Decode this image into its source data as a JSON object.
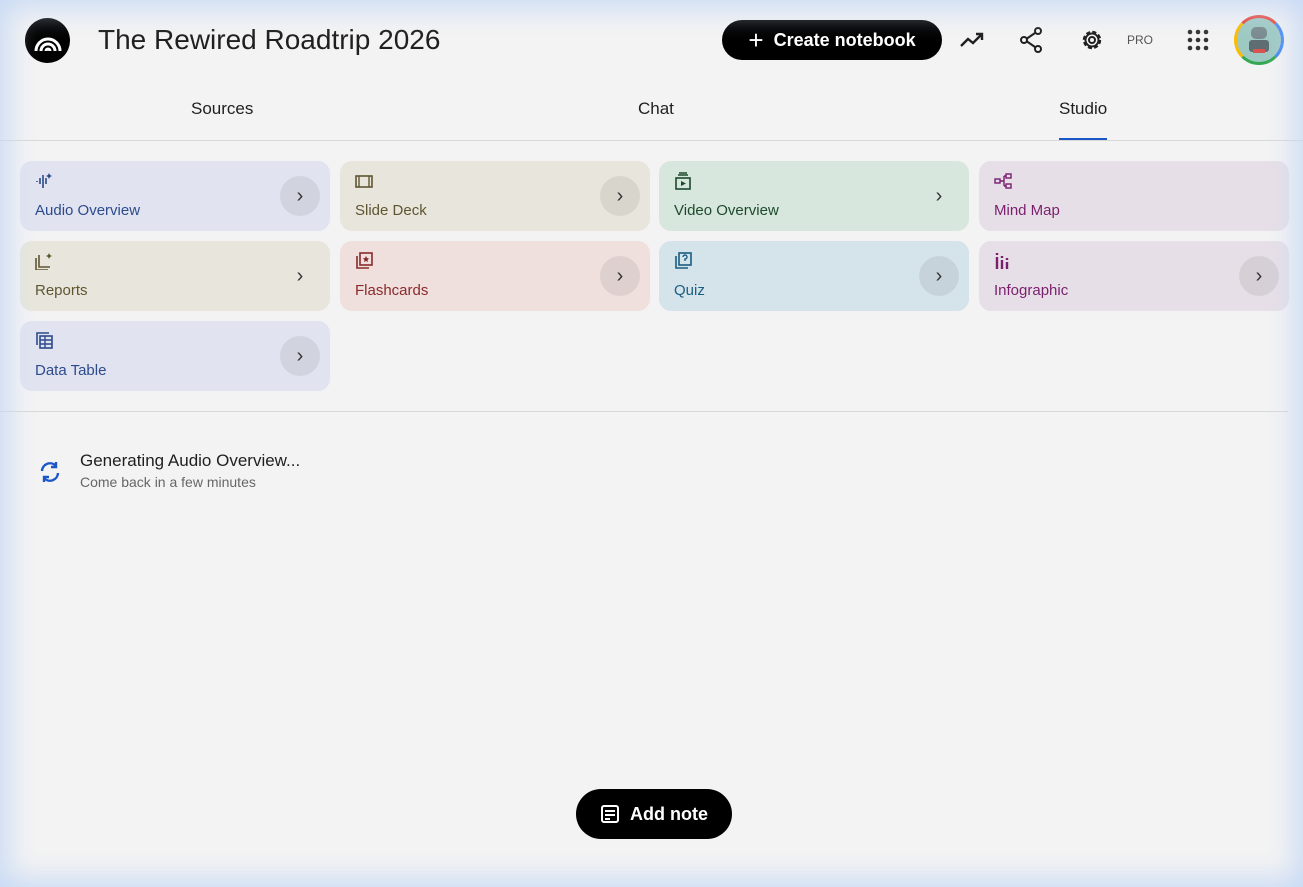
{
  "header": {
    "title": "The Rewired Roadtrip 2026",
    "create_label": "Create notebook",
    "pro_label": "PRO"
  },
  "tabs": [
    {
      "label": "Sources"
    },
    {
      "label": "Chat"
    },
    {
      "label": "Studio",
      "active": true
    }
  ],
  "cards": [
    {
      "label": "Audio Overview",
      "icon": "audio-waveform-icon",
      "bg": "#e1e4f0",
      "color": "#2c4a8c"
    },
    {
      "label": "Slide Deck",
      "icon": "slides-icon",
      "bg": "#e8e6dc",
      "color": "#5e5530"
    },
    {
      "label": "Video Overview",
      "icon": "video-icon",
      "bg": "#d8e7dd",
      "color": "#1d4a2c"
    },
    {
      "label": "Mind Map",
      "icon": "mind-map-icon",
      "bg": "#e7dfe7",
      "color": "#7a1f6e"
    },
    {
      "label": "Reports",
      "icon": "reports-icon",
      "bg": "#e8e6dc",
      "color": "#5e5530"
    },
    {
      "label": "Flashcards",
      "icon": "flashcards-icon",
      "bg": "#efe0de",
      "color": "#8a2a2a"
    },
    {
      "label": "Quiz",
      "icon": "quiz-icon",
      "bg": "#d5e4eb",
      "color": "#1a5e80"
    },
    {
      "label": "Infographic",
      "icon": "infographic-icon",
      "bg": "#e7dfe7",
      "color": "#7a1f6e"
    },
    {
      "label": "Data Table",
      "icon": "data-table-icon",
      "bg": "#e1e4f0",
      "color": "#2c4a8c"
    }
  ],
  "status": {
    "title": "Generating Audio Overview...",
    "subtitle": "Come back in a few minutes"
  },
  "add_note_label": "Add note",
  "accent": "#1a56c8"
}
